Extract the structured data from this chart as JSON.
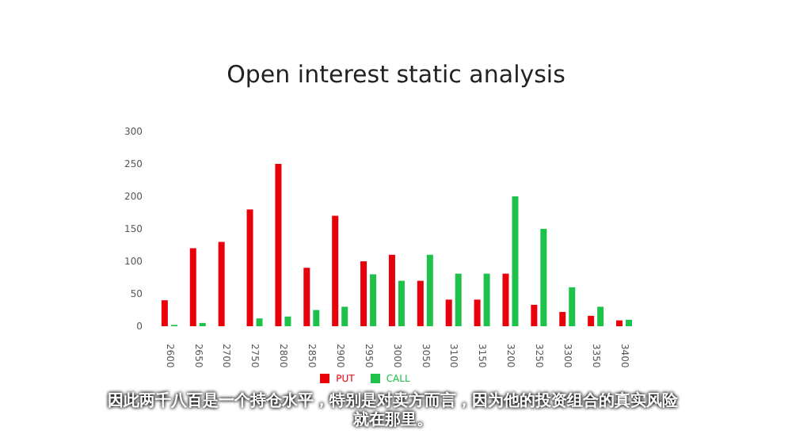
{
  "chart_data": {
    "type": "bar",
    "title": "Open interest static analysis",
    "categories": [
      "2600",
      "2650",
      "2700",
      "2750",
      "2800",
      "2850",
      "2900",
      "2950",
      "3000",
      "3050",
      "3100",
      "3150",
      "3200",
      "3250",
      "3300",
      "3350",
      "3400"
    ],
    "series": [
      {
        "name": "PUT",
        "color": "#e8000b",
        "values": [
          40,
          120,
          130,
          180,
          250,
          90,
          170,
          100,
          110,
          70,
          41,
          41,
          81,
          33,
          22,
          16,
          9
        ]
      },
      {
        "name": "CALL",
        "color": "#1ec24b",
        "values": [
          2,
          5,
          0,
          12,
          15,
          25,
          30,
          80,
          70,
          110,
          81,
          81,
          200,
          150,
          60,
          30,
          10
        ]
      }
    ],
    "ylim": [
      0,
      300
    ],
    "yticks": [
      0,
      50,
      100,
      150,
      200,
      250,
      300
    ],
    "grid": false,
    "legend": "bottom",
    "annotations": [
      "因此两千八百是一个持仓水平，特别是对卖方而言，因为他的投资组合的真实风险就在那里。"
    ]
  }
}
